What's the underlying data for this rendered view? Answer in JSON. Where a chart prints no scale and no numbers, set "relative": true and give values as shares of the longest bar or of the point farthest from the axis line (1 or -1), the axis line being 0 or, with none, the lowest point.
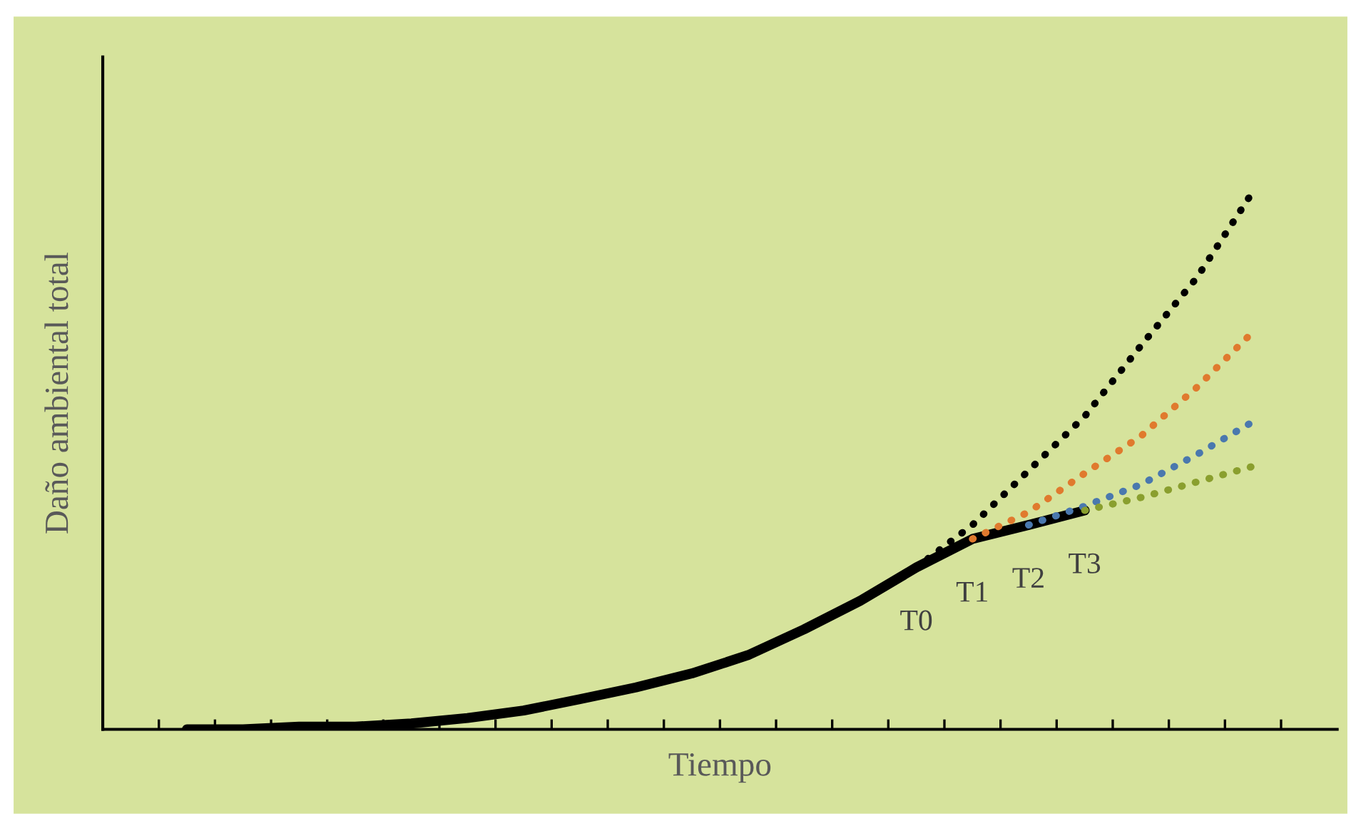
{
  "chart_data": {
    "type": "line",
    "relative": true,
    "xlabel": "Tiempo",
    "ylabel": "Daño ambiental total",
    "categories": [
      null,
      null,
      null,
      null,
      null,
      null,
      null,
      null,
      null,
      null,
      null,
      null,
      null,
      null,
      null,
      null,
      null,
      null,
      null,
      null
    ],
    "series": [
      {
        "color": "#000000",
        "line_style": "solid",
        "values": [
          0,
          0,
          0.005,
          0.005,
          0.011,
          0.021,
          0.035,
          0.056,
          0.078,
          0.104,
          0.138,
          0.186,
          0.239,
          0.301,
          0.354,
          0.38,
          0.407,
          null,
          null,
          null
        ]
      },
      {
        "color": "#000000",
        "line_style": "dotted",
        "values": [
          null,
          null,
          null,
          null,
          null,
          null,
          null,
          null,
          null,
          null,
          null,
          null,
          null,
          0.301,
          0.38,
          0.481,
          0.582,
          0.713,
          0.84,
          1
        ]
      },
      {
        "color": "#e07a2e",
        "line_style": "dotted",
        "values": [
          null,
          null,
          null,
          null,
          null,
          null,
          null,
          null,
          null,
          null,
          null,
          null,
          null,
          null,
          0.354,
          0.404,
          0.476,
          0.545,
          0.636,
          0.739
        ]
      },
      {
        "color": "#4a78ae",
        "line_style": "dotted",
        "values": [
          null,
          null,
          null,
          null,
          null,
          null,
          null,
          null,
          null,
          null,
          null,
          null,
          null,
          null,
          null,
          0.38,
          0.415,
          0.455,
          0.511,
          0.572
        ]
      },
      {
        "color": "#8a9f2e",
        "line_style": "dotted",
        "values": [
          null,
          null,
          null,
          null,
          null,
          null,
          null,
          null,
          null,
          null,
          null,
          null,
          null,
          null,
          null,
          null,
          0.407,
          0.431,
          0.46,
          0.489
        ]
      }
    ],
    "annotations": [
      "T0",
      "T1",
      "T2",
      "T3"
    ],
    "grid": false,
    "legend": false
  }
}
